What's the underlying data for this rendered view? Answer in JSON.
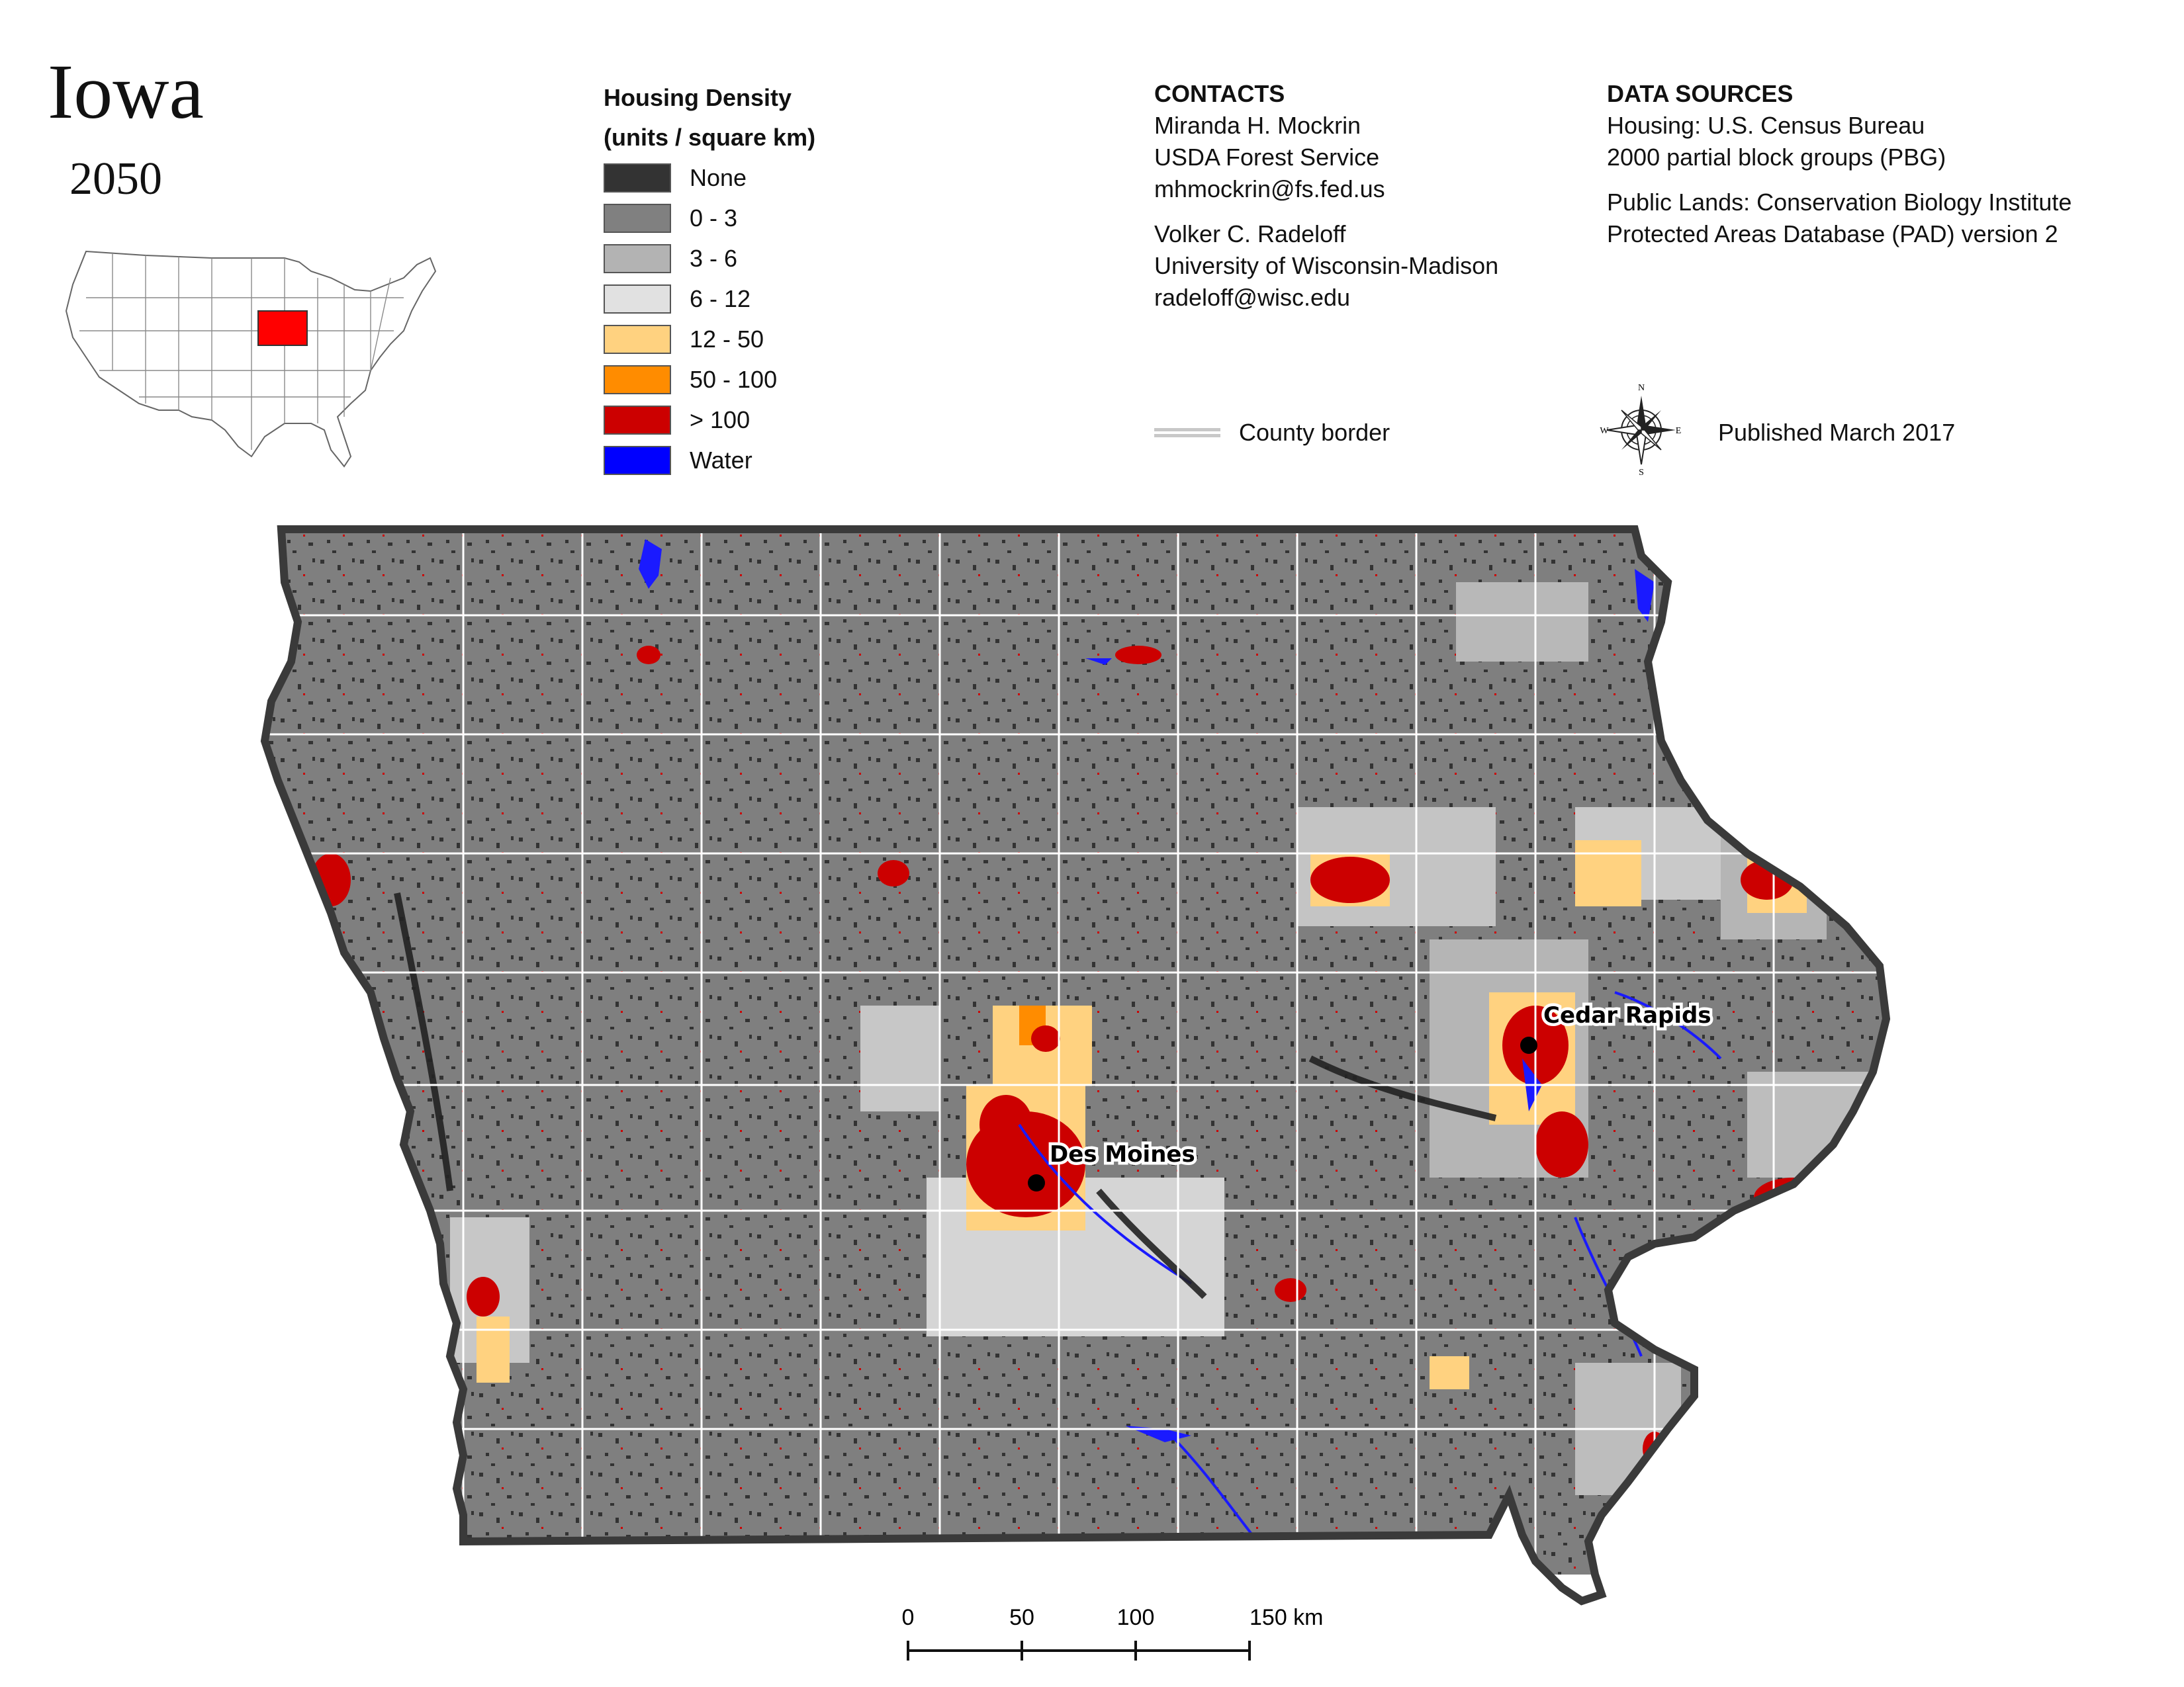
{
  "title": "Iowa",
  "year": "2050",
  "legend": {
    "title_line1": "Housing Density",
    "title_line2": "(units / square km)",
    "items": [
      {
        "label": "None",
        "color": "#333333"
      },
      {
        "label": "0 - 3",
        "color": "#808080"
      },
      {
        "label": "3 - 6",
        "color": "#b3b3b3"
      },
      {
        "label": "6 - 12",
        "color": "#e1e1e1"
      },
      {
        "label": "12 - 50",
        "color": "#ffd280"
      },
      {
        "label": "50 - 100",
        "color": "#ff8c00"
      },
      {
        "label": "> 100",
        "color": "#cc0000"
      },
      {
        "label": "Water",
        "color": "#0000ff"
      }
    ]
  },
  "contacts": {
    "heading": "CONTACTS",
    "person1": {
      "name": "Miranda H. Mockrin",
      "org": "USDA Forest Service",
      "email": "mhmockrin@fs.fed.us"
    },
    "person2": {
      "name": "Volker C. Radeloff",
      "org": "University of Wisconsin-Madison",
      "email": "radeloff@wisc.edu"
    }
  },
  "data_sources": {
    "heading": "DATA SOURCES",
    "housing_line1": "Housing: U.S. Census Bureau",
    "housing_line2": "2000 partial block groups (PBG)",
    "lands_line1": "Public Lands: Conservation Biology Institute",
    "lands_line2": "Protected Areas Database (PAD) version 2"
  },
  "county_border_label": "County border",
  "published": "Published March 2017",
  "compass": {
    "n": "N",
    "s": "S",
    "e": "E",
    "w": "W"
  },
  "cities": [
    {
      "name": "Des Moines"
    },
    {
      "name": "Cedar Rapids"
    }
  ],
  "scale_bar": {
    "ticks": [
      "0",
      "50",
      "100",
      "150 km"
    ]
  },
  "colors": {
    "highlight_state": "#ff0000",
    "state_fill": "#7f7f7f",
    "state_outline": "#444444",
    "county_lines": "#ffffff",
    "river": "#1a1aff"
  }
}
